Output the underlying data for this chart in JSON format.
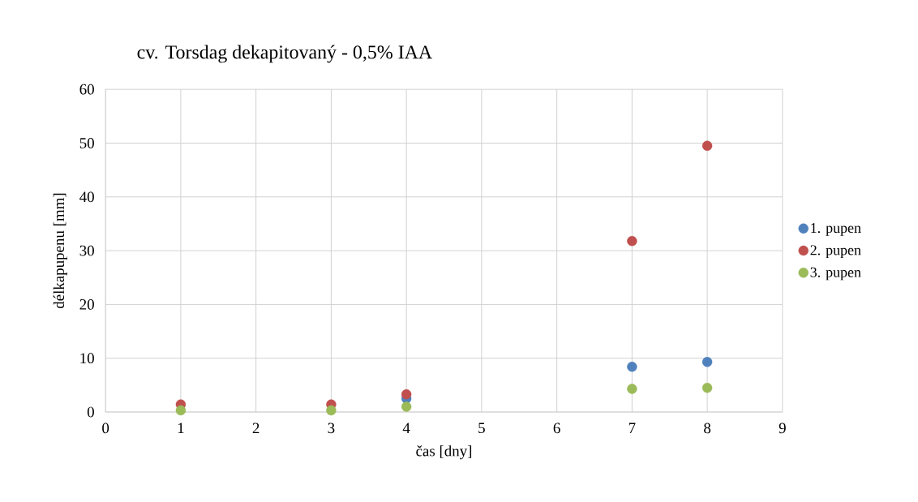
{
  "chart_data": {
    "type": "scatter",
    "title": "cv. Torsdag dekapitovaný - 0,5% IAA",
    "xlabel": "čas [dny]",
    "ylabel": "délkapupenu [mm]",
    "x": [
      1,
      3,
      4,
      7,
      8
    ],
    "series": [
      {
        "name": "1. pupen",
        "color": "#4f81bd",
        "values": [
          null,
          null,
          2.5,
          8.4,
          9.3
        ]
      },
      {
        "name": "2. pupen",
        "color": "#c0504d",
        "values": [
          1.4,
          1.4,
          3.3,
          31.8,
          49.5
        ]
      },
      {
        "name": "3. pupen",
        "color": "#9bbb59",
        "values": [
          0.3,
          0.3,
          1.0,
          4.3,
          4.5
        ]
      }
    ],
    "xlim": [
      0,
      9
    ],
    "ylim": [
      0,
      60
    ],
    "xticks": [
      0,
      1,
      2,
      3,
      4,
      5,
      6,
      7,
      8,
      9
    ],
    "yticks": [
      0,
      10,
      20,
      30,
      40,
      50,
      60
    ],
    "grid": true,
    "legend": "right"
  }
}
